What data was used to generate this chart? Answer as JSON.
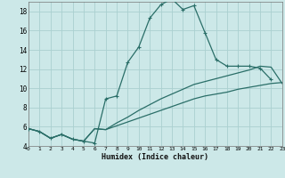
{
  "xlabel": "Humidex (Indice chaleur)",
  "bg_color": "#cce8e8",
  "grid_color": "#aad0d0",
  "line_color": "#2a6e68",
  "xlim": [
    0,
    23
  ],
  "ylim": [
    4,
    19
  ],
  "ytick_vals": [
    4,
    6,
    8,
    10,
    12,
    14,
    16,
    18
  ],
  "xtick_vals": [
    0,
    1,
    2,
    3,
    4,
    5,
    6,
    7,
    8,
    9,
    10,
    11,
    12,
    13,
    14,
    15,
    16,
    17,
    18,
    19,
    20,
    21,
    22,
    23
  ],
  "curve1_x": [
    0,
    1,
    2,
    3,
    4,
    5,
    6,
    7,
    8,
    9,
    10,
    11,
    12,
    13,
    14,
    15,
    16,
    17,
    18,
    19,
    20,
    21,
    22
  ],
  "curve1_y": [
    5.8,
    5.5,
    4.8,
    5.2,
    4.7,
    4.5,
    4.3,
    8.9,
    9.2,
    12.7,
    14.3,
    17.3,
    18.7,
    19.3,
    18.2,
    18.6,
    15.8,
    13.0,
    12.3,
    12.3,
    12.3,
    12.1,
    10.9
  ],
  "curve2_x": [
    0,
    1,
    2,
    3,
    4,
    5,
    6,
    7,
    8,
    9,
    10,
    11,
    12,
    13,
    14,
    15,
    16,
    17,
    18,
    19,
    20,
    21,
    22,
    23
  ],
  "curve2_y": [
    5.8,
    5.5,
    4.8,
    5.2,
    4.7,
    4.5,
    5.8,
    5.7,
    6.4,
    7.0,
    7.7,
    8.3,
    8.9,
    9.4,
    9.9,
    10.4,
    10.7,
    11.0,
    11.3,
    11.6,
    11.9,
    12.3,
    12.2,
    10.5
  ],
  "curve3_x": [
    0,
    1,
    2,
    3,
    4,
    5,
    6,
    7,
    8,
    9,
    10,
    11,
    12,
    13,
    14,
    15,
    16,
    17,
    18,
    19,
    20,
    21,
    22,
    23
  ],
  "curve3_y": [
    5.8,
    5.5,
    4.8,
    5.2,
    4.7,
    4.5,
    5.8,
    5.7,
    6.1,
    6.5,
    6.9,
    7.3,
    7.7,
    8.1,
    8.5,
    8.9,
    9.2,
    9.4,
    9.6,
    9.9,
    10.1,
    10.3,
    10.5,
    10.6
  ]
}
